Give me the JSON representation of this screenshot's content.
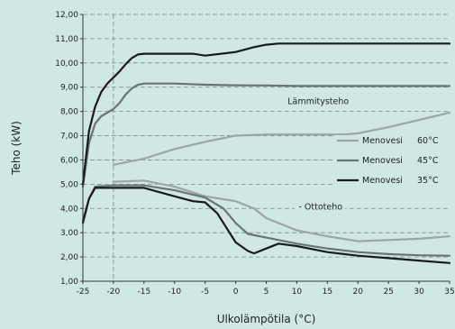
{
  "chart_data": {
    "type": "line",
    "xlabel": "Ulkolämpötila (°C)",
    "ylabel": "Teho (kW)",
    "xlim": [
      -25,
      35
    ],
    "ylim": [
      1.0,
      12.0
    ],
    "x_ticks": [
      "-25",
      "-20",
      "-15",
      "-10",
      "-5",
      "0",
      "5",
      "10",
      "15",
      "20",
      "25",
      "30",
      "35"
    ],
    "y_ticks": [
      "1,00",
      "2,00",
      "3,00",
      "4,00",
      "5,00",
      "6,00",
      "7,00",
      "8,00",
      "9,00",
      "10,00",
      "11,00",
      "12,00"
    ],
    "grid": "dashed horizontal lines at each major tick and a vertical dashed line at x = -20",
    "annotations": [
      {
        "text": "Lämmitysteho",
        "x": 8.5,
        "y": 8.3
      },
      {
        "text": "Ottoteho",
        "x": 10.3,
        "y": 3.95
      }
    ],
    "legend": {
      "placement": "right",
      "entries": [
        {
          "prefix": "Menovesi",
          "suffix": "60°C",
          "color": "#9ea4a8"
        },
        {
          "prefix": "Menovesi",
          "suffix": "45°C",
          "color": "#6c7378"
        },
        {
          "prefix": "Menovesi",
          "suffix": "35°C",
          "color": "#1a1a1a"
        }
      ]
    },
    "series": [
      {
        "legend": "60°C",
        "group": "Lämmitysteho",
        "color": "#9ea4a8",
        "x": [
          -20,
          -15,
          -10,
          -5,
          -3,
          0,
          5,
          10,
          15,
          18,
          20,
          25,
          30,
          35
        ],
        "y": [
          5.8,
          6.05,
          6.45,
          6.75,
          6.85,
          7.0,
          7.05,
          7.05,
          7.05,
          7.05,
          7.1,
          7.35,
          7.65,
          7.95
        ]
      },
      {
        "legend": "45°C",
        "group": "Lämmitysteho",
        "color": "#6c7378",
        "x": [
          -25,
          -24,
          -23,
          -22,
          -21,
          -20,
          -19,
          -18,
          -17,
          -16,
          -15,
          -10,
          -5,
          0,
          5,
          10,
          15,
          20,
          25,
          30,
          35
        ],
        "y": [
          4.9,
          6.7,
          7.5,
          7.8,
          7.95,
          8.1,
          8.35,
          8.7,
          8.95,
          9.1,
          9.15,
          9.15,
          9.1,
          9.08,
          9.07,
          9.05,
          9.05,
          9.05,
          9.05,
          9.05,
          9.05
        ]
      },
      {
        "legend": "35°C",
        "group": "Lämmitysteho",
        "color": "#1a1a1a",
        "x": [
          -25,
          -24,
          -23,
          -22,
          -21,
          -20,
          -19,
          -18,
          -17,
          -16,
          -15,
          -10,
          -7,
          -5,
          0,
          3,
          5,
          7,
          10,
          15,
          20,
          25,
          30,
          35
        ],
        "y": [
          5.0,
          7.2,
          8.2,
          8.8,
          9.15,
          9.4,
          9.65,
          9.95,
          10.2,
          10.35,
          10.38,
          10.38,
          10.38,
          10.3,
          10.45,
          10.65,
          10.75,
          10.8,
          10.8,
          10.8,
          10.8,
          10.8,
          10.8,
          10.8
        ]
      },
      {
        "legend": "60°C",
        "group": "Ottoteho",
        "color": "#9ea4a8",
        "x": [
          -20,
          -15,
          -10,
          -5,
          0,
          3,
          5,
          8,
          10,
          15,
          20,
          25,
          30,
          35
        ],
        "y": [
          5.1,
          5.15,
          4.9,
          4.5,
          4.3,
          4.0,
          3.6,
          3.3,
          3.1,
          2.85,
          2.65,
          2.7,
          2.75,
          2.85
        ]
      },
      {
        "legend": "45°C",
        "group": "Ottoteho",
        "color": "#6c7378",
        "x": [
          -25,
          -24,
          -23,
          -22,
          -21,
          -20,
          -15,
          -10,
          -5,
          -2,
          0,
          2,
          5,
          10,
          15,
          20,
          25,
          30,
          35
        ],
        "y": [
          3.5,
          4.4,
          4.9,
          4.92,
          4.93,
          4.95,
          4.95,
          4.75,
          4.45,
          4.0,
          3.4,
          2.95,
          2.8,
          2.55,
          2.35,
          2.2,
          2.12,
          2.07,
          2.05
        ]
      },
      {
        "legend": "35°C",
        "group": "Ottoteho",
        "color": "#1a1a1a",
        "x": [
          -25,
          -24,
          -23,
          -22,
          -21,
          -20,
          -15,
          -10,
          -7,
          -5,
          -3,
          -1,
          0,
          2,
          3,
          5,
          7,
          10,
          15,
          20,
          25,
          30,
          35
        ],
        "y": [
          3.4,
          4.4,
          4.85,
          4.85,
          4.85,
          4.85,
          4.85,
          4.5,
          4.3,
          4.25,
          3.8,
          3.0,
          2.6,
          2.25,
          2.15,
          2.35,
          2.55,
          2.45,
          2.2,
          2.05,
          1.95,
          1.85,
          1.75
        ]
      }
    ]
  }
}
